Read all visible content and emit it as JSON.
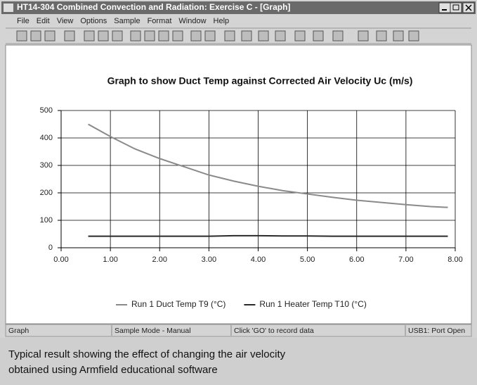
{
  "window": {
    "title": "HT14-304 Combined Convection and Radiation:  Exercise C - [Graph]",
    "menu": [
      "File",
      "Edit",
      "View",
      "Options",
      "Sample",
      "Format",
      "Window",
      "Help"
    ],
    "status": [
      "Graph",
      "Sample Mode - Manual",
      "Click 'GO' to record data",
      "USB1: Port Open"
    ]
  },
  "caption": [
    "Typical result showing the effect of changing the air velocity",
    "obtained using Armfield educational software"
  ],
  "chart_data": {
    "type": "line",
    "title": "Graph to show Duct Temp  against Corrected Air Velocity Uc (m/s)",
    "x": [
      0.55,
      1.0,
      1.5,
      2.0,
      2.5,
      3.0,
      3.5,
      4.0,
      4.5,
      5.0,
      5.5,
      6.0,
      6.5,
      7.0,
      7.5,
      7.85
    ],
    "series": [
      {
        "name": "Run 1 Duct Temp T9 (°C)",
        "color": "#8a8a8a",
        "values": [
          450,
          405,
          360,
          325,
          295,
          265,
          243,
          224,
          208,
          196,
          184,
          173,
          165,
          157,
          150,
          147
        ]
      },
      {
        "name": "Run 1 Heater Temp T10 (°C)",
        "color": "#2a2a2a",
        "values": [
          42,
          42,
          42,
          42,
          42,
          42,
          44,
          44,
          43,
          43,
          42,
          42,
          42,
          42,
          42,
          42
        ]
      }
    ],
    "xlim": [
      0,
      8
    ],
    "xticks": [
      {
        "value": 0,
        "label": "0.00"
      },
      {
        "value": 1,
        "label": "1.00"
      },
      {
        "value": 2,
        "label": "2.00"
      },
      {
        "value": 3,
        "label": "3.00"
      },
      {
        "value": 4,
        "label": "4.00"
      },
      {
        "value": 5,
        "label": "5.00"
      },
      {
        "value": 6,
        "label": "6.00"
      },
      {
        "value": 7,
        "label": "7.00"
      },
      {
        "value": 8,
        "label": "8.00"
      }
    ],
    "ylim": [
      0,
      500
    ],
    "yticks": [
      0,
      100,
      200,
      300,
      400,
      500
    ],
    "grid": true
  }
}
